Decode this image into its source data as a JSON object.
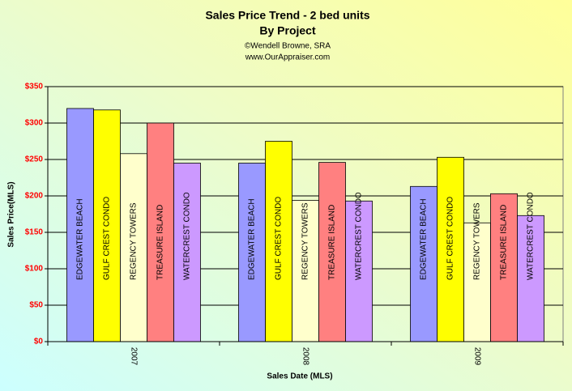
{
  "chart_data": {
    "type": "bar",
    "title": "Sales Price Trend - 2 bed units",
    "subtitle": "By Project",
    "credits": [
      "©Wendell Browne, SRA",
      "www.OurAppraiser.com"
    ],
    "x_label": "Sales Date (MLS)",
    "y_label": "Sales Price(MLS)",
    "categories": [
      "2007",
      "2008",
      "2009"
    ],
    "series": [
      {
        "name": "EDGEWATER BEACH",
        "color": "#9999ff",
        "values": [
          320,
          245,
          213
        ]
      },
      {
        "name": "GULF CREST CONDO",
        "color": "#ffff00",
        "values": [
          318,
          275,
          253
        ]
      },
      {
        "name": "REGENCY TOWERS",
        "color": "#ffffcc",
        "values": [
          258,
          194,
          163
        ]
      },
      {
        "name": "TREASURE ISLAND",
        "color": "#ff8080",
        "values": [
          300,
          246,
          203
        ]
      },
      {
        "name": "WATERCREST CONDO",
        "color": "#cc99ff",
        "values": [
          245,
          193,
          173
        ]
      }
    ],
    "ylim": [
      0,
      350
    ],
    "yticks": [
      {
        "value": 0,
        "label": "$0"
      },
      {
        "value": 50,
        "label": "$50"
      },
      {
        "value": 100,
        "label": "$100"
      },
      {
        "value": 150,
        "label": "$150"
      },
      {
        "value": 200,
        "label": "$200"
      },
      {
        "value": 250,
        "label": "$250"
      },
      {
        "value": 300,
        "label": "$300"
      },
      {
        "value": 350,
        "label": "$350"
      }
    ],
    "grid": true
  }
}
